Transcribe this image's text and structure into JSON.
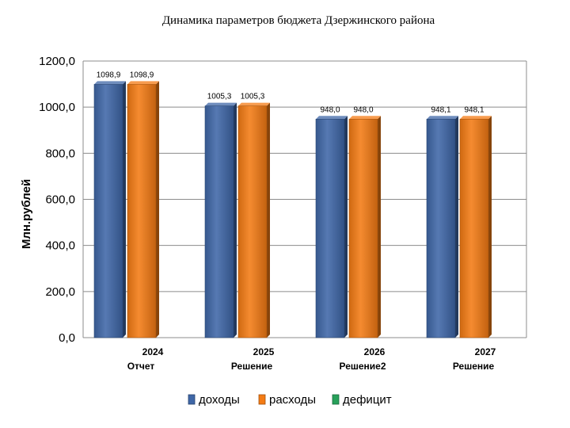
{
  "chart_data": {
    "type": "bar",
    "title": "Динамика параметров бюджета Дзержинского района",
    "ylabel": "Млн.рублей",
    "xlabel": "",
    "ylim": [
      0,
      1200
    ],
    "yticks": [
      "0,0",
      "200,0",
      "400,0",
      "600,0",
      "800,0",
      "1000,0",
      "1200,0"
    ],
    "ytick_values": [
      0,
      200,
      400,
      600,
      800,
      1000,
      1200
    ],
    "grid": true,
    "legend_position": "bottom",
    "categories": [
      {
        "year": "2024",
        "sub": "Отчет"
      },
      {
        "year": "2025",
        "sub": "Решение"
      },
      {
        "year": "2026",
        "sub": "Решение2"
      },
      {
        "year": "2027",
        "sub": "Решение"
      }
    ],
    "series": [
      {
        "name": "доходы",
        "color": "#3f67a7",
        "values": [
          1098.9,
          1005.3,
          948.0,
          948.1
        ],
        "labels": [
          "1098,9",
          "1005,3",
          "948,0",
          "948,1"
        ]
      },
      {
        "name": "расходы",
        "color": "#f47b14",
        "values": [
          1098.9,
          1005.3,
          948.0,
          948.1
        ],
        "labels": [
          "1098,9",
          "1005,3",
          "948,0",
          "948,1"
        ]
      },
      {
        "name": "дефицит",
        "color": "#27a15a",
        "values": [
          0,
          0,
          0,
          0
        ],
        "labels": []
      }
    ]
  }
}
